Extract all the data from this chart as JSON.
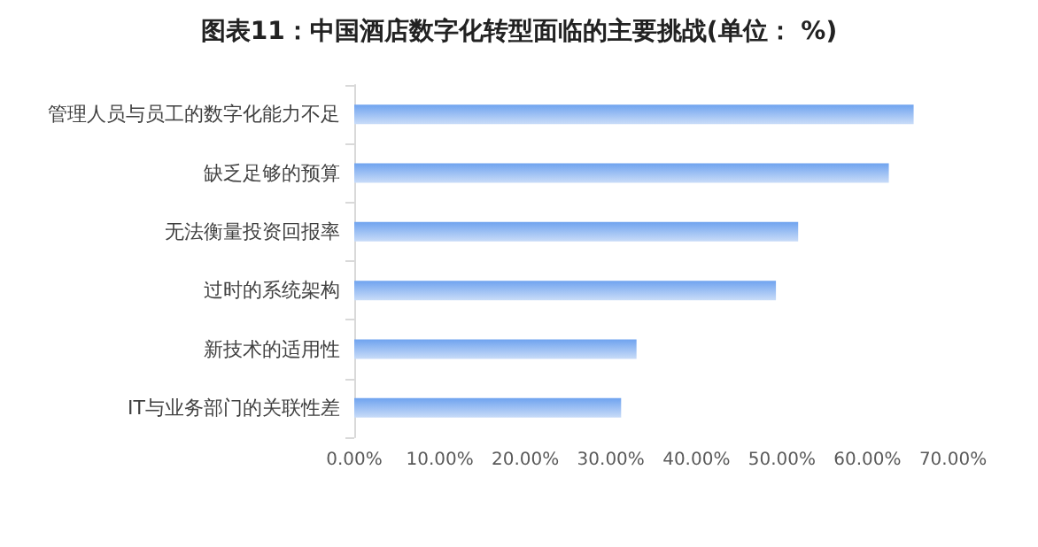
{
  "chart_data": {
    "type": "bar",
    "orientation": "horizontal",
    "title": "图表11：中国酒店数字化转型面临的主要挑战(单位： %)",
    "categories": [
      "管理人员与员工的数字化能力不足",
      "缺乏足够的预算",
      "无法衡量投资回报率",
      "过时的系统架构",
      "新技术的适用性",
      "IT与业务部门的关联性差"
    ],
    "values": [
      65.4,
      62.5,
      51.9,
      49.3,
      33.0,
      31.2
    ],
    "color": "#6fa3ef",
    "xlim": [
      0,
      70
    ],
    "xticks": [
      {
        "value": 0,
        "label": "0.00%"
      },
      {
        "value": 10,
        "label": "10.00%"
      },
      {
        "value": 20,
        "label": "20.00%"
      },
      {
        "value": 30,
        "label": "30.00%"
      },
      {
        "value": 40,
        "label": "40.00%"
      },
      {
        "value": 50,
        "label": "50.00%"
      },
      {
        "value": 60,
        "label": "60.00%"
      },
      {
        "value": 70,
        "label": "70.00%"
      }
    ],
    "grid": false
  }
}
